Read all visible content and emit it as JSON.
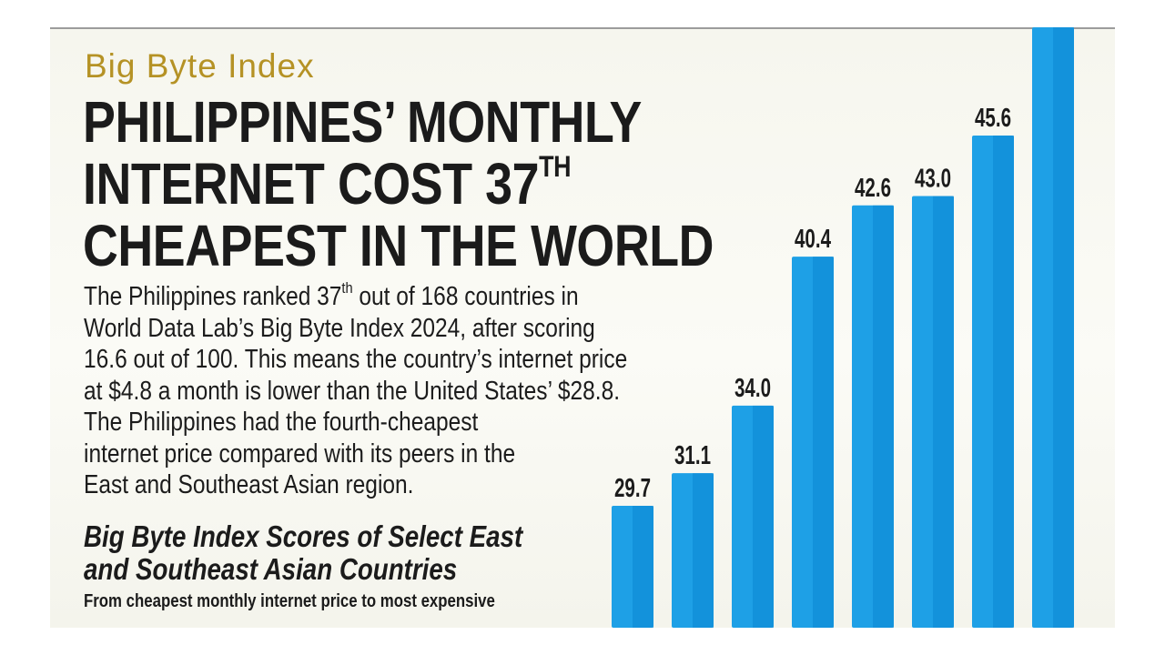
{
  "kicker": "Big Byte Index",
  "headline": {
    "line1": "PHILIPPINES’ MONTHLY",
    "line2": "INTERNET COST 37",
    "line2_sup": "TH",
    "line3": "CHEAPEST IN THE WORLD"
  },
  "body": {
    "l1a": "The Philippines ranked 37",
    "l1sup": "th",
    "l1b": " out of 168 countries in",
    "l2": "World Data Lab’s Big Byte Index 2024, after scoring",
    "l3": "16.6 out of 100. This means the country’s internet price",
    "l4": "at $4.8 a month is lower than the United States’ $28.8.",
    "l5": "The Philippines had the fourth-cheapest",
    "l6": "internet price compared with its peers in the",
    "l7": "East and Southeast Asian region."
  },
  "colors": {
    "bar": "#1ea0e6",
    "bar_shade": "#0b86d2",
    "kicker": "#b59225",
    "text": "#1b1b1b"
  },
  "chart_data": {
    "type": "bar",
    "title": "Big Byte Index Scores of Select East and Southeast Asian Countries",
    "title_line1": "Big Byte Index Scores of Select East",
    "title_line2": "and Southeast Asian Countries",
    "subtitle": "From cheapest monthly internet price to most expensive",
    "values": [
      29.7,
      31.1,
      34.0,
      40.4,
      42.6,
      43.0,
      45.6,
      null
    ],
    "labels": [
      "29.7",
      "31.1",
      "34.0",
      "40.4",
      "42.6",
      "43.0",
      "45.6",
      ""
    ],
    "ylim": [
      0,
      50
    ],
    "grid": false,
    "legend": "none",
    "note": ""
  }
}
